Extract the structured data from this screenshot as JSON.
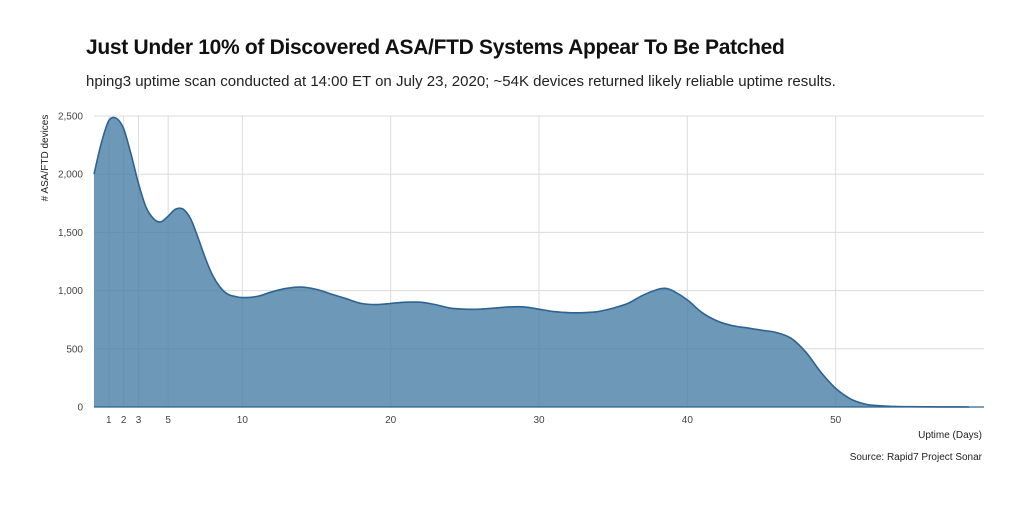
{
  "chart_data": {
    "type": "area",
    "title": "Just Under 10% of Discovered ASA/FTD Systems Appear To Be Patched",
    "subtitle": "hping3 uptime scan conducted at 14:00 ET on July 23, 2020; ~54K devices returned likely reliable uptime results.",
    "caption": "Source: Rapid7 Project Sonar",
    "xlabel": "Uptime (Days)",
    "ylabel": "# ASA/FTD devices",
    "xlim": [
      0,
      60
    ],
    "ylim": [
      0,
      2500
    ],
    "x_ticks": [
      1,
      2,
      3,
      5,
      10,
      20,
      30,
      40,
      50
    ],
    "y_ticks": [
      0,
      500,
      1000,
      1500,
      2000,
      2500
    ],
    "y_tick_labels": [
      "0",
      "500",
      "1,000",
      "1,500",
      "2,000",
      "2,500"
    ],
    "grid": true,
    "fill_color": "#4a7ea6",
    "fill_opacity": 0.8,
    "line_color": "#2c6390",
    "x": [
      0,
      0.5,
      1,
      1.5,
      2,
      2.5,
      3,
      3.5,
      4,
      4.5,
      5,
      5.5,
      6,
      6.5,
      7,
      7.5,
      8,
      8.5,
      9,
      9.5,
      10,
      11,
      12,
      13,
      14,
      15,
      16,
      17,
      18,
      19,
      20,
      21,
      22,
      23,
      24,
      25,
      26,
      27,
      28,
      29,
      30,
      31,
      32,
      33,
      34,
      35,
      36,
      37,
      38,
      38.5,
      39,
      40,
      41,
      42,
      43,
      44,
      45,
      46,
      47,
      48,
      49,
      50,
      51,
      52,
      53,
      54,
      55,
      56,
      57,
      58,
      59
    ],
    "y": [
      2000,
      2270,
      2460,
      2480,
      2390,
      2170,
      1920,
      1720,
      1620,
      1590,
      1640,
      1700,
      1700,
      1620,
      1460,
      1280,
      1130,
      1030,
      970,
      950,
      940,
      950,
      990,
      1020,
      1030,
      1010,
      970,
      930,
      890,
      880,
      890,
      900,
      900,
      880,
      850,
      840,
      840,
      850,
      860,
      860,
      840,
      820,
      810,
      810,
      820,
      850,
      890,
      960,
      1010,
      1020,
      1000,
      920,
      810,
      740,
      700,
      680,
      660,
      640,
      590,
      470,
      300,
      160,
      70,
      25,
      10,
      5,
      3,
      2,
      1,
      1,
      0
    ]
  }
}
